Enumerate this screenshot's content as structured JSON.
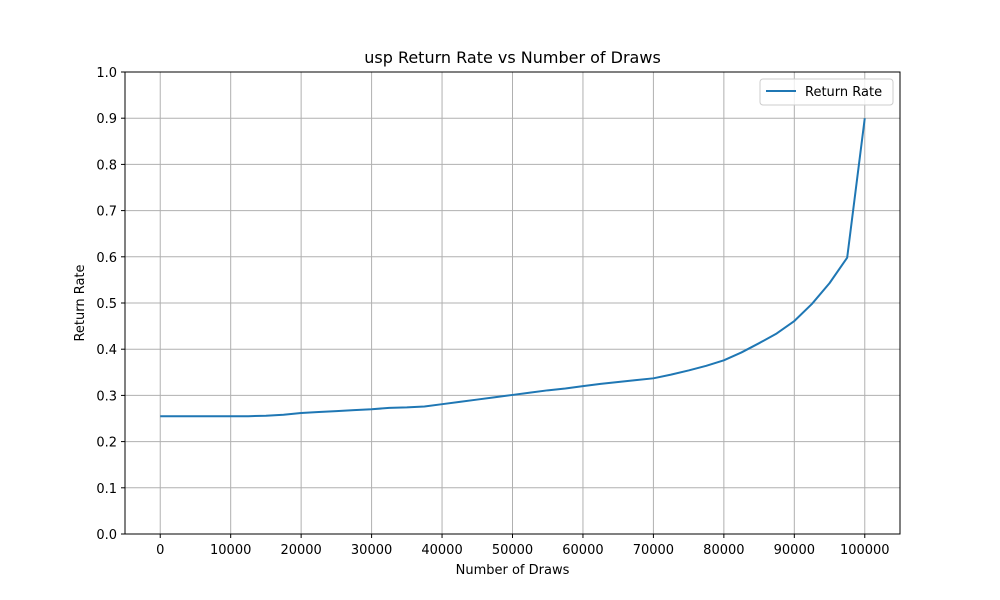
{
  "chart_data": {
    "type": "line",
    "title": "usp Return Rate vs Number of Draws",
    "xlabel": "Number of Draws",
    "ylabel": "Return Rate",
    "xlim": [
      -5000,
      105000
    ],
    "ylim": [
      0.0,
      1.0
    ],
    "xticks": [
      0,
      10000,
      20000,
      30000,
      40000,
      50000,
      60000,
      70000,
      80000,
      90000,
      100000
    ],
    "xtick_labels": [
      "0",
      "10000",
      "20000",
      "30000",
      "40000",
      "50000",
      "60000",
      "70000",
      "80000",
      "90000",
      "100000"
    ],
    "yticks": [
      0.0,
      0.1,
      0.2,
      0.3,
      0.4,
      0.5,
      0.6,
      0.7,
      0.8,
      0.9,
      1.0
    ],
    "ytick_labels": [
      "0.0",
      "0.1",
      "0.2",
      "0.3",
      "0.4",
      "0.5",
      "0.6",
      "0.7",
      "0.8",
      "0.9",
      "1.0"
    ],
    "grid": true,
    "legend_position": "upper right",
    "series": [
      {
        "name": "Return Rate",
        "color": "#1f77b4",
        "x": [
          0,
          2500,
          5000,
          7500,
          10000,
          12500,
          15000,
          17500,
          20000,
          22500,
          25000,
          27500,
          30000,
          32500,
          35000,
          37500,
          40000,
          42500,
          45000,
          47500,
          50000,
          52500,
          55000,
          57500,
          60000,
          62500,
          65000,
          67500,
          70000,
          72500,
          75000,
          77500,
          80000,
          82500,
          85000,
          87500,
          90000,
          92500,
          95000,
          97500,
          100000
        ],
        "y": [
          0.255,
          0.255,
          0.255,
          0.255,
          0.255,
          0.255,
          0.256,
          0.258,
          0.262,
          0.264,
          0.266,
          0.268,
          0.27,
          0.273,
          0.274,
          0.276,
          0.281,
          0.286,
          0.291,
          0.296,
          0.301,
          0.306,
          0.311,
          0.315,
          0.32,
          0.325,
          0.329,
          0.333,
          0.337,
          0.345,
          0.354,
          0.364,
          0.376,
          0.393,
          0.413,
          0.434,
          0.461,
          0.498,
          0.543,
          0.598,
          0.9
        ]
      }
    ]
  }
}
